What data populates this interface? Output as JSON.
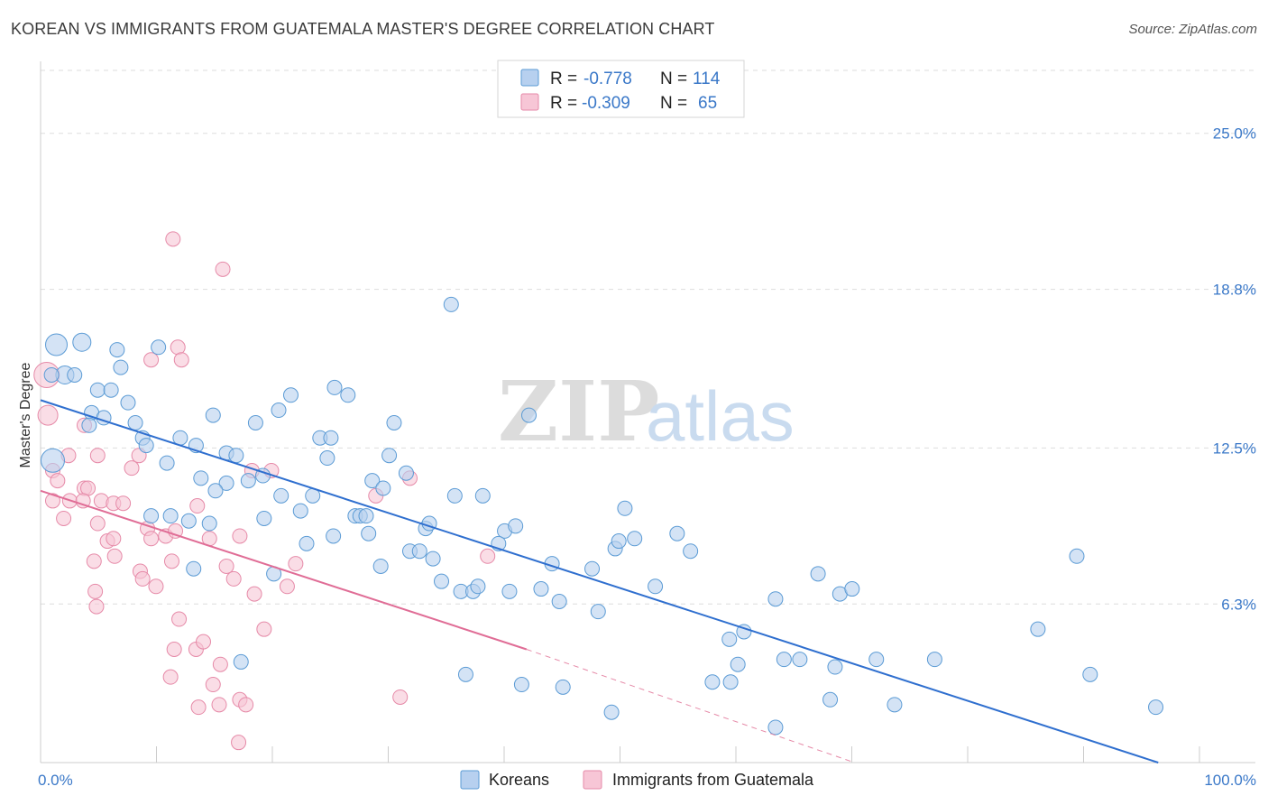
{
  "title": "KOREAN VS IMMIGRANTS FROM GUATEMALA MASTER'S DEGREE CORRELATION CHART",
  "source": "Source: ZipAtlas.com",
  "watermark": {
    "zip": "ZIP",
    "atlas": "atlas"
  },
  "legend": {
    "r_label": "R =",
    "n_label": "N =",
    "rows": [
      {
        "r": "-0.778",
        "n": "114",
        "color": "#a8c8ee"
      },
      {
        "r": "-0.309",
        "n": "65",
        "color": "#f5b8cc"
      }
    ]
  },
  "colors": {
    "blue": "#5b9bd5",
    "blue_fill": "#b7d0ef",
    "blue_line": "#2f6fcf",
    "pink": "#e68aa8",
    "pink_fill": "#f7c6d6",
    "pink_line": "#e06d96",
    "axis_label": "#3a78c8"
  },
  "chart_data": {
    "type": "scatter",
    "title": "KOREAN VS IMMIGRANTS FROM GUATEMALA MASTER'S DEGREE CORRELATION CHART",
    "xlabel": "",
    "ylabel": "Master's Degree",
    "xlim": [
      0,
      100
    ],
    "ylim": [
      0,
      27.5
    ],
    "x_tick_labels": [
      "0.0%",
      "100.0%"
    ],
    "y_ticks": [
      6.3,
      12.5,
      18.8,
      25.0
    ],
    "y_tick_labels": [
      "6.3%",
      "12.5%",
      "18.8%",
      "25.0%"
    ],
    "grid": true,
    "legend_position": "top-center",
    "series": [
      {
        "name": "Koreans",
        "r": -0.778,
        "n": 114,
        "trend": {
          "x": [
            0,
            92
          ],
          "y": [
            14.4,
            0.0
          ],
          "dashed_to": null
        },
        "points": [
          [
            1.3,
            16.6
          ],
          [
            3.4,
            16.7
          ],
          [
            2.0,
            15.4
          ],
          [
            2.8,
            15.4
          ],
          [
            0.9,
            15.4
          ],
          [
            6.3,
            16.4
          ],
          [
            6.6,
            15.7
          ],
          [
            9.7,
            16.5
          ],
          [
            4.7,
            14.8
          ],
          [
            5.8,
            14.8
          ],
          [
            7.2,
            14.3
          ],
          [
            4.2,
            13.9
          ],
          [
            5.2,
            13.7
          ],
          [
            7.8,
            13.5
          ],
          [
            4.0,
            13.4
          ],
          [
            1.0,
            12.0
          ],
          [
            8.4,
            12.9
          ],
          [
            8.7,
            12.6
          ],
          [
            11.5,
            12.9
          ],
          [
            12.8,
            12.6
          ],
          [
            10.4,
            11.9
          ],
          [
            14.2,
            13.8
          ],
          [
            15.3,
            12.3
          ],
          [
            16.1,
            12.2
          ],
          [
            17.7,
            13.5
          ],
          [
            19.6,
            14.0
          ],
          [
            20.6,
            14.6
          ],
          [
            24.2,
            14.9
          ],
          [
            25.3,
            14.6
          ],
          [
            18.3,
            11.4
          ],
          [
            17.1,
            11.2
          ],
          [
            15.3,
            11.1
          ],
          [
            13.2,
            11.3
          ],
          [
            14.4,
            10.8
          ],
          [
            19.8,
            10.6
          ],
          [
            22.4,
            10.6
          ],
          [
            21.4,
            10.0
          ],
          [
            23.0,
            12.9
          ],
          [
            23.6,
            12.1
          ],
          [
            23.9,
            12.9
          ],
          [
            29.1,
            13.5
          ],
          [
            28.7,
            12.2
          ],
          [
            30.1,
            11.5
          ],
          [
            27.3,
            11.2
          ],
          [
            28.2,
            10.9
          ],
          [
            25.9,
            9.8
          ],
          [
            26.3,
            9.8
          ],
          [
            26.8,
            9.8
          ],
          [
            9.1,
            9.8
          ],
          [
            10.7,
            9.8
          ],
          [
            12.2,
            9.6
          ],
          [
            13.9,
            9.5
          ],
          [
            18.4,
            9.7
          ],
          [
            21.9,
            8.7
          ],
          [
            24.1,
            9.0
          ],
          [
            27.0,
            9.1
          ],
          [
            28.0,
            7.8
          ],
          [
            30.4,
            8.4
          ],
          [
            31.2,
            8.4
          ],
          [
            32.3,
            8.1
          ],
          [
            31.7,
            9.3
          ],
          [
            32.0,
            9.5
          ],
          [
            34.1,
            10.6
          ],
          [
            36.4,
            10.6
          ],
          [
            33.0,
            7.2
          ],
          [
            34.6,
            6.8
          ],
          [
            35.6,
            6.8
          ],
          [
            36.0,
            7.0
          ],
          [
            38.2,
            9.2
          ],
          [
            37.7,
            8.7
          ],
          [
            39.1,
            9.4
          ],
          [
            38.6,
            6.8
          ],
          [
            40.2,
            13.8
          ],
          [
            41.2,
            6.9
          ],
          [
            42.1,
            7.9
          ],
          [
            42.7,
            6.4
          ],
          [
            45.4,
            7.7
          ],
          [
            45.9,
            6.0
          ],
          [
            47.3,
            8.5
          ],
          [
            47.6,
            8.8
          ],
          [
            48.9,
            8.9
          ],
          [
            48.1,
            10.1
          ],
          [
            50.6,
            7.0
          ],
          [
            52.4,
            9.1
          ],
          [
            53.5,
            8.4
          ],
          [
            56.7,
            4.9
          ],
          [
            57.9,
            5.2
          ],
          [
            55.3,
            3.2
          ],
          [
            56.8,
            3.2
          ],
          [
            57.4,
            3.9
          ],
          [
            60.5,
            6.5
          ],
          [
            64.0,
            7.5
          ],
          [
            65.8,
            6.7
          ],
          [
            66.8,
            6.9
          ],
          [
            68.8,
            4.1
          ],
          [
            65.4,
            3.8
          ],
          [
            65.0,
            2.5
          ],
          [
            62.5,
            4.1
          ],
          [
            61.2,
            4.1
          ],
          [
            60.5,
            1.4
          ],
          [
            70.3,
            2.3
          ],
          [
            73.6,
            4.1
          ],
          [
            85.3,
            8.2
          ],
          [
            86.4,
            3.5
          ],
          [
            91.8,
            2.2
          ],
          [
            82.1,
            5.3
          ],
          [
            33.8,
            18.2
          ],
          [
            35.0,
            3.5
          ],
          [
            39.6,
            3.1
          ],
          [
            43.0,
            3.0
          ],
          [
            47.0,
            2.0
          ],
          [
            16.5,
            4.0
          ],
          [
            12.6,
            7.7
          ],
          [
            19.2,
            7.5
          ]
        ]
      },
      {
        "name": "Immigrants from Guatemala",
        "r": -0.309,
        "n": 65,
        "trend": {
          "x": [
            0,
            40
          ],
          "y": [
            10.8,
            4.5
          ],
          "dashed_to": [
            67,
            0.0
          ]
        },
        "points": [
          [
            0.5,
            15.4
          ],
          [
            0.6,
            13.8
          ],
          [
            10.9,
            20.8
          ],
          [
            15.0,
            19.6
          ],
          [
            9.1,
            16.0
          ],
          [
            11.3,
            16.5
          ],
          [
            11.6,
            16.0
          ],
          [
            1.0,
            11.6
          ],
          [
            1.4,
            11.2
          ],
          [
            2.3,
            12.2
          ],
          [
            3.6,
            10.9
          ],
          [
            3.9,
            10.9
          ],
          [
            4.7,
            12.2
          ],
          [
            3.6,
            13.4
          ],
          [
            1.0,
            10.4
          ],
          [
            2.4,
            10.4
          ],
          [
            3.5,
            10.4
          ],
          [
            5.0,
            10.4
          ],
          [
            6.0,
            10.3
          ],
          [
            6.8,
            10.3
          ],
          [
            7.5,
            11.7
          ],
          [
            8.1,
            12.2
          ],
          [
            1.9,
            9.7
          ],
          [
            4.7,
            9.5
          ],
          [
            5.5,
            8.8
          ],
          [
            6.0,
            8.9
          ],
          [
            8.8,
            9.3
          ],
          [
            9.1,
            8.9
          ],
          [
            4.4,
            8.0
          ],
          [
            6.1,
            8.2
          ],
          [
            8.2,
            7.6
          ],
          [
            8.4,
            7.3
          ],
          [
            9.5,
            7.0
          ],
          [
            10.3,
            9.0
          ],
          [
            11.1,
            9.2
          ],
          [
            12.9,
            10.2
          ],
          [
            13.9,
            8.9
          ],
          [
            15.3,
            7.8
          ],
          [
            15.9,
            7.3
          ],
          [
            16.4,
            9.0
          ],
          [
            17.4,
            11.6
          ],
          [
            19.0,
            11.6
          ],
          [
            21.0,
            7.9
          ],
          [
            20.3,
            7.0
          ],
          [
            17.6,
            6.7
          ],
          [
            18.4,
            5.3
          ],
          [
            10.8,
            8.0
          ],
          [
            4.5,
            6.8
          ],
          [
            4.6,
            6.2
          ],
          [
            11.4,
            5.7
          ],
          [
            11.0,
            4.5
          ],
          [
            12.8,
            4.5
          ],
          [
            13.4,
            4.8
          ],
          [
            14.8,
            3.9
          ],
          [
            14.2,
            3.1
          ],
          [
            10.7,
            3.4
          ],
          [
            13.0,
            2.2
          ],
          [
            14.7,
            2.3
          ],
          [
            16.4,
            2.5
          ],
          [
            16.9,
            2.3
          ],
          [
            16.3,
            0.8
          ],
          [
            27.6,
            10.6
          ],
          [
            30.4,
            11.3
          ],
          [
            36.8,
            8.2
          ],
          [
            29.6,
            2.6
          ]
        ]
      }
    ]
  },
  "bottom_legend": [
    {
      "label": "Koreans"
    },
    {
      "label": "Immigrants from Guatemala"
    }
  ]
}
